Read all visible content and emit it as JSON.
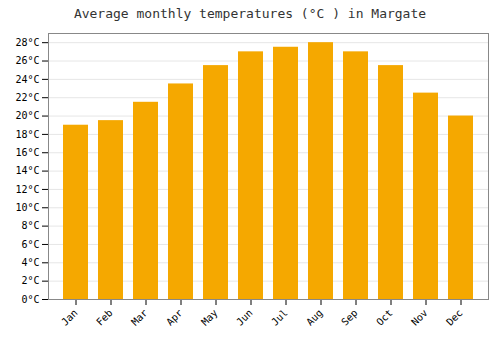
{
  "chart_data": {
    "type": "bar",
    "title": "Average monthly temperatures (°C ) in Margate",
    "categories": [
      "Jan",
      "Feb",
      "Mar",
      "Apr",
      "May",
      "Jun",
      "Jul",
      "Aug",
      "Sep",
      "Oct",
      "Nov",
      "Dec"
    ],
    "values": [
      19.0,
      19.5,
      21.5,
      23.5,
      25.5,
      27.0,
      27.5,
      28.0,
      27.0,
      25.5,
      22.5,
      20.0
    ],
    "color": "#F5A800",
    "ylim": [
      0,
      29
    ],
    "yticks": [
      {
        "value": 0,
        "label": "0°C"
      },
      {
        "value": 2,
        "label": "2°C"
      },
      {
        "value": 4,
        "label": "4°C"
      },
      {
        "value": 6,
        "label": "6°C"
      },
      {
        "value": 8,
        "label": "8°C"
      },
      {
        "value": 10,
        "label": "10°C"
      },
      {
        "value": 12,
        "label": "12°C"
      },
      {
        "value": 14,
        "label": "14°C"
      },
      {
        "value": 16,
        "label": "16°C"
      },
      {
        "value": 18,
        "label": "18°C"
      },
      {
        "value": 20,
        "label": "20°C"
      },
      {
        "value": 22,
        "label": "22°C"
      },
      {
        "value": 24,
        "label": "24°C"
      },
      {
        "value": 26,
        "label": "26°C"
      },
      {
        "value": 28,
        "label": "28°C"
      }
    ],
    "grid": true
  }
}
